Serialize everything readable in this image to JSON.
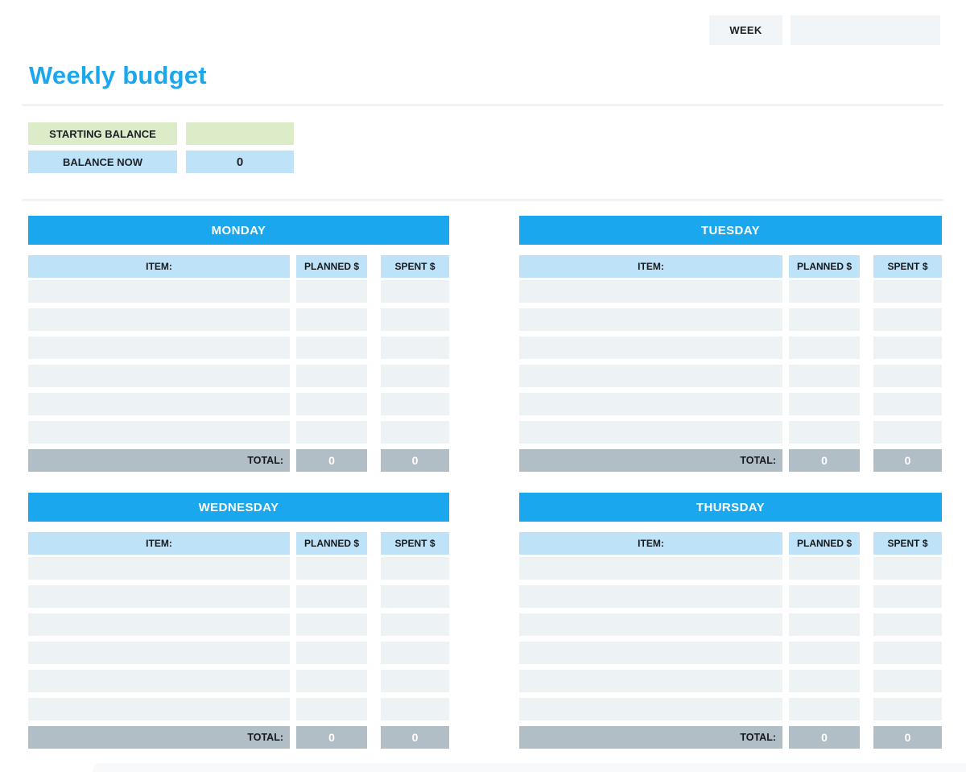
{
  "colors": {
    "accent_blue": "#1aa7ee",
    "light_blue": "#bee3f8",
    "light_green": "#dcecc8",
    "row_gray": "#edf2f5",
    "total_gray": "#b2bec6",
    "field_gray": "#f1f5f7"
  },
  "week": {
    "label": "WEEK",
    "value": ""
  },
  "page": {
    "title": "Weekly budget"
  },
  "balance": {
    "starting_label": "STARTING BALANCE",
    "starting_value": "",
    "now_label": "BALANCE NOW",
    "now_value": "0"
  },
  "tables": {
    "columns": {
      "item": "ITEM:",
      "planned": "PLANNED $",
      "spent": "SPENT $"
    },
    "total_label": "TOTAL:",
    "days": [
      {
        "name": "MONDAY",
        "rows": [
          {
            "item": "",
            "planned": "",
            "spent": ""
          },
          {
            "item": "",
            "planned": "",
            "spent": ""
          },
          {
            "item": "",
            "planned": "",
            "spent": ""
          },
          {
            "item": "",
            "planned": "",
            "spent": ""
          },
          {
            "item": "",
            "planned": "",
            "spent": ""
          },
          {
            "item": "",
            "planned": "",
            "spent": ""
          }
        ],
        "total_planned": "0",
        "total_spent": "0"
      },
      {
        "name": "TUESDAY",
        "rows": [
          {
            "item": "",
            "planned": "",
            "spent": ""
          },
          {
            "item": "",
            "planned": "",
            "spent": ""
          },
          {
            "item": "",
            "planned": "",
            "spent": ""
          },
          {
            "item": "",
            "planned": "",
            "spent": ""
          },
          {
            "item": "",
            "planned": "",
            "spent": ""
          },
          {
            "item": "",
            "planned": "",
            "spent": ""
          }
        ],
        "total_planned": "0",
        "total_spent": "0"
      },
      {
        "name": "WEDNESDAY",
        "rows": [
          {
            "item": "",
            "planned": "",
            "spent": ""
          },
          {
            "item": "",
            "planned": "",
            "spent": ""
          },
          {
            "item": "",
            "planned": "",
            "spent": ""
          },
          {
            "item": "",
            "planned": "",
            "spent": ""
          },
          {
            "item": "",
            "planned": "",
            "spent": ""
          },
          {
            "item": "",
            "planned": "",
            "spent": ""
          }
        ],
        "total_planned": "0",
        "total_spent": "0"
      },
      {
        "name": "THURSDAY",
        "rows": [
          {
            "item": "",
            "planned": "",
            "spent": ""
          },
          {
            "item": "",
            "planned": "",
            "spent": ""
          },
          {
            "item": "",
            "planned": "",
            "spent": ""
          },
          {
            "item": "",
            "planned": "",
            "spent": ""
          },
          {
            "item": "",
            "planned": "",
            "spent": ""
          },
          {
            "item": "",
            "planned": "",
            "spent": ""
          }
        ],
        "total_planned": "0",
        "total_spent": "0"
      }
    ]
  }
}
